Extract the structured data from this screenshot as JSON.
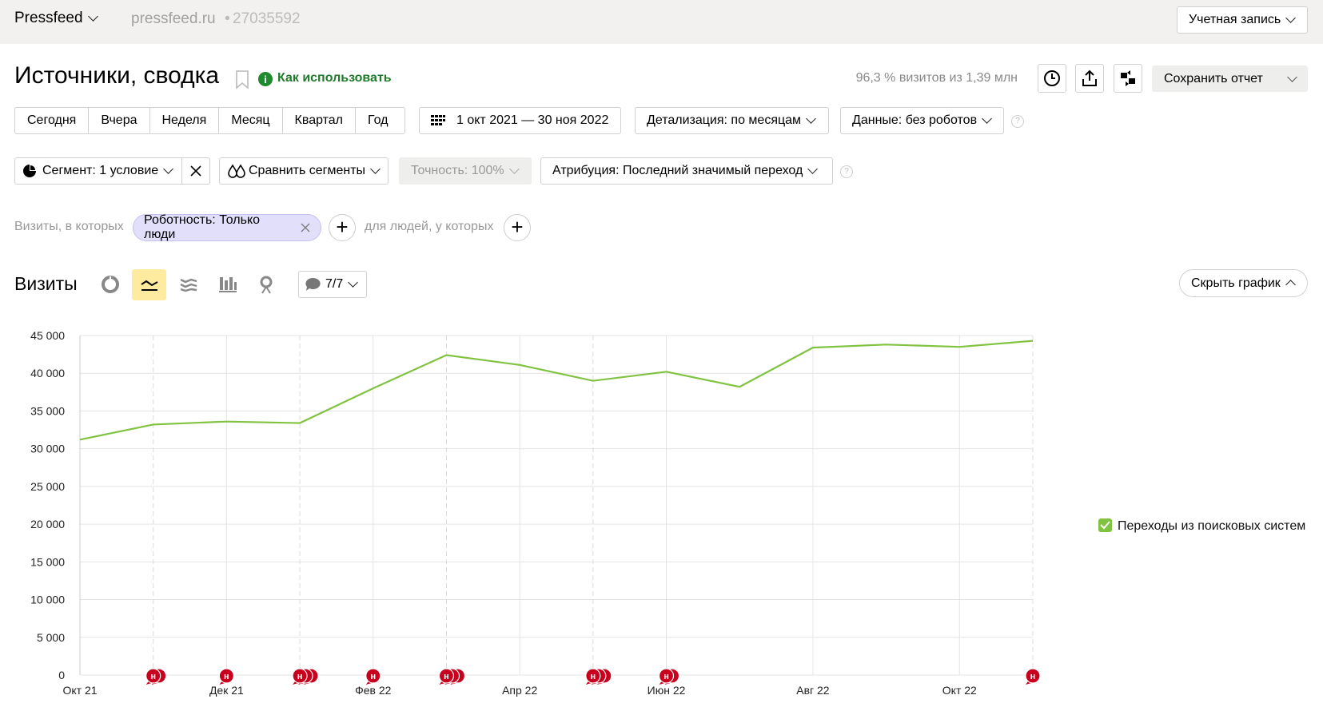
{
  "header": {
    "site_name": "Pressfeed",
    "domain": "pressfeed.ru",
    "counter_id": "27035592",
    "account": "Учетная запись"
  },
  "report": {
    "title": "Источники, сводка",
    "help_link": "Как использовать",
    "sample_info": "96,3 % визитов из 1,39 млн",
    "save_button": "Сохранить отчет"
  },
  "periods": [
    "Сегодня",
    "Вчера",
    "Неделя",
    "Месяц",
    "Квартал",
    "Год"
  ],
  "date_range": "1 окт 2021 — 30 ноя 2022",
  "detail": "Детализация: по месяцам",
  "data_filter": "Данные: без роботов",
  "segment": "Сегмент: 1 условие",
  "compare": "Сравнить сегменты",
  "accuracy": "Точность: 100%",
  "attribution": "Атрибуция: Последний значимый переход",
  "filters": {
    "visits_prefix": "Визиты, в которых",
    "chip": "Роботность: Только люди",
    "people_prefix": "для людей, у которых"
  },
  "chart_section": {
    "metric_title": "Визиты",
    "series_selector": "7/7",
    "hide_chart": "Скрыть график"
  },
  "chart_data": {
    "type": "line",
    "categories": [
      "Окт 21",
      null,
      "Дек 21",
      null,
      "Фев 22",
      null,
      "Апр 22",
      null,
      "Июн 22",
      null,
      "Авг 22",
      null,
      "Окт 22",
      null
    ],
    "series": [
      {
        "name": "Переходы из поисковых систем",
        "color": "#80c341",
        "values": [
          31200,
          33200,
          33600,
          33400,
          38000,
          42400,
          41100,
          39000,
          40200,
          38200,
          43400,
          43800,
          43500,
          44300
        ]
      }
    ],
    "ylim": [
      0,
      45000
    ],
    "yticks": [
      0,
      {
        "value": 5000,
        "label": "5 000"
      },
      {
        "value": 10000,
        "label": "10 000"
      },
      {
        "value": 15000,
        "label": "15 000"
      },
      {
        "value": 20000,
        "label": "20 000"
      },
      {
        "value": 25000,
        "label": "25 000"
      },
      {
        "value": 30000,
        "label": "30 000"
      },
      {
        "value": 35000,
        "label": "35 000"
      },
      {
        "value": 40000,
        "label": "40 000"
      },
      {
        "value": 45000,
        "label": "45 000"
      }
    ],
    "grid": true,
    "annotations": {
      "label": "н",
      "counts": [
        0,
        2,
        1,
        3,
        1,
        3,
        0,
        3,
        2,
        0,
        0,
        0,
        0,
        1
      ]
    }
  }
}
